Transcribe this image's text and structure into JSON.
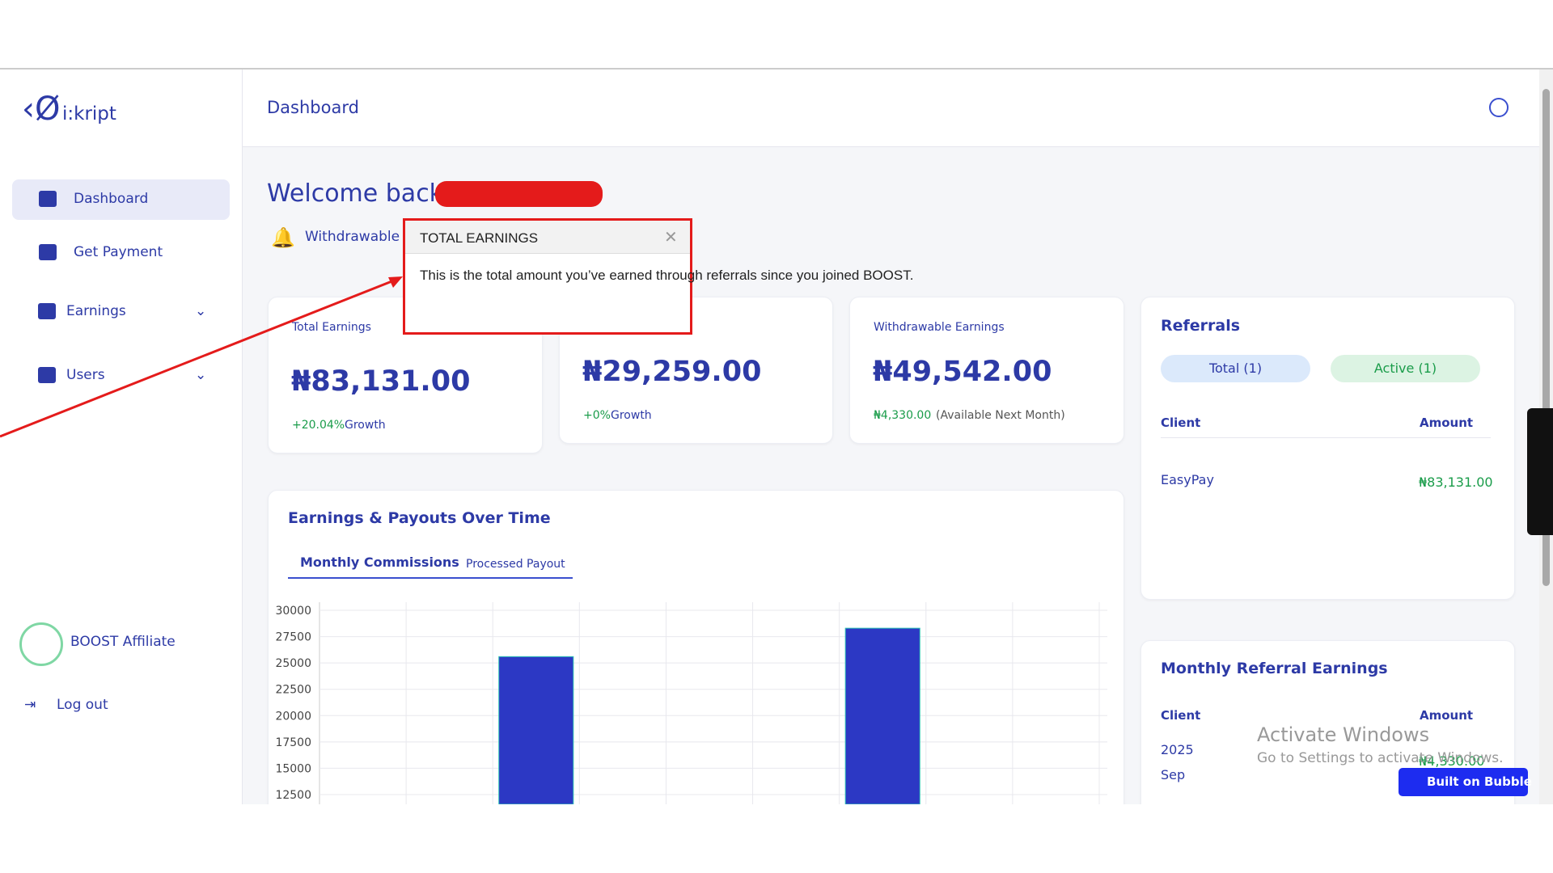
{
  "sidebar": {
    "logo": "i:kript",
    "nav": [
      "Dashboard",
      "Get Payment",
      "Earnings",
      "Users"
    ],
    "account": "BOOST Affiliate",
    "logout": "Log out"
  },
  "header": {
    "title": "Dashboard"
  },
  "welcome": "Welcome back,",
  "notice": "Withdrawable e",
  "tooltip": {
    "title": "TOTAL EARNINGS",
    "body": "This is the total amount you’ve earned through referrals since you joined BOOST."
  },
  "cards": [
    {
      "label": "Total Earnings",
      "value": "₦83,131.00",
      "growth": "+20.04%",
      "growth_label": "Growth"
    },
    {
      "value": "₦29,259.00",
      "growth": "+0%",
      "growth_label": "Growth"
    },
    {
      "label": "Withdrawable Earnings",
      "value": "₦49,542.00",
      "growth": "₦4,330.00",
      "growth_label": "(Available Next Month)"
    }
  ],
  "referrals": {
    "title": "Referrals",
    "tabs": [
      "Total (1)",
      "Active (1)"
    ],
    "columns": [
      "Client",
      "Amount"
    ],
    "rows": [
      [
        "EasyPay",
        "₦83,131.00"
      ]
    ]
  },
  "monthly": {
    "title": "Monthly Referral Earnings",
    "columns": [
      "Client",
      "Amount"
    ],
    "rows": [
      [
        "2025 Sep",
        "₦4,330.00"
      ]
    ]
  },
  "chart": {
    "type": "bar",
    "title": "Earnings & Payouts Over Time",
    "tabs": [
      "Monthly Commissions",
      "Processed Payout"
    ],
    "categories": [
      null,
      null,
      null,
      null,
      null,
      null,
      null,
      null,
      null
    ],
    "values": [
      null,
      null,
      25600,
      null,
      null,
      null,
      28300,
      null,
      null
    ],
    "color": "#2c38c4",
    "ylim": [
      12500,
      30000
    ],
    "yticks": [
      30000,
      27500,
      25000,
      22500,
      20000,
      17500,
      15000,
      12500
    ],
    "grid": true
  },
  "watermark": {
    "title": "Activate Windows",
    "text": "Go to Settings to activate Windows."
  },
  "badge": "Built on Bubble"
}
